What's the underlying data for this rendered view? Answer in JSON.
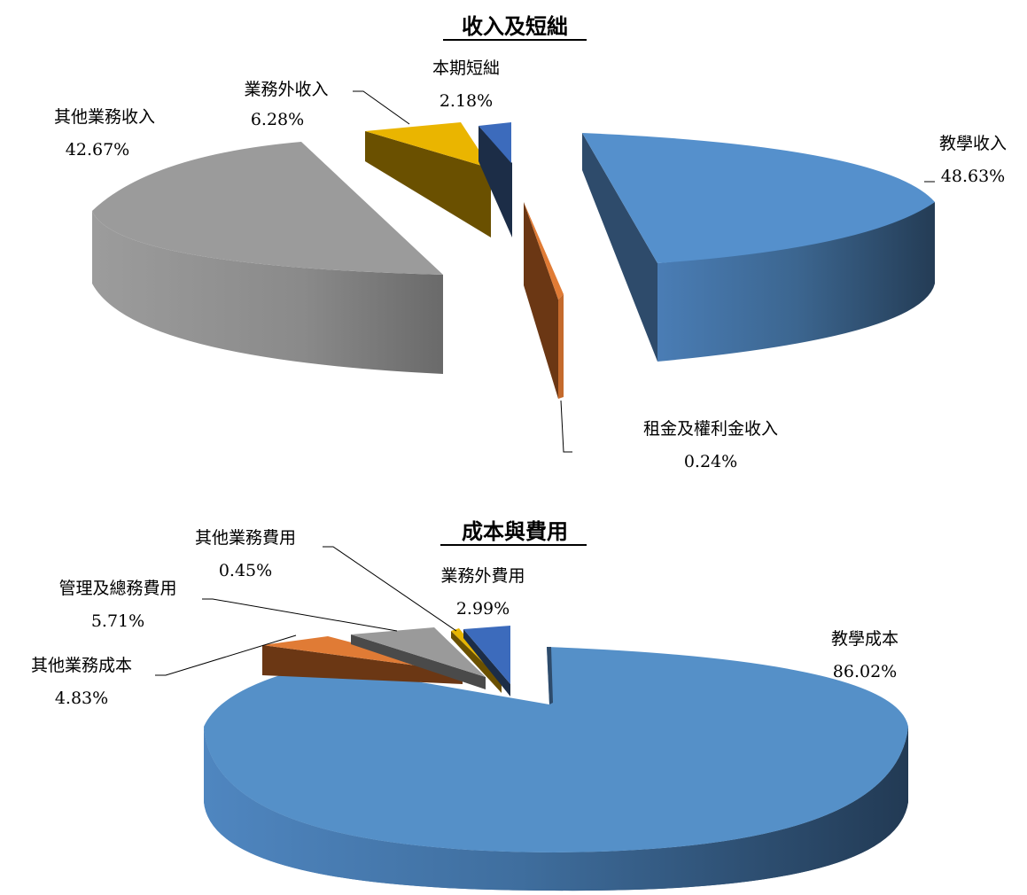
{
  "chart_data": [
    {
      "type": "pie",
      "title": "收入及短絀",
      "slices": [
        {
          "name": "教學收入",
          "value": 48.63,
          "label": "48.63%",
          "color": "#4f81bd"
        },
        {
          "name": "租金及權利金收入",
          "value": 0.24,
          "label": "0.24%",
          "color": "#d67a33"
        },
        {
          "name": "其他業務收入",
          "value": 42.67,
          "label": "42.67%",
          "color": "#9a9a9a"
        },
        {
          "name": "業務外收入",
          "value": 6.28,
          "label": "6.28%",
          "color": "#e6b400"
        },
        {
          "name": "本期短絀",
          "value": 2.18,
          "label": "2.18%",
          "color": "#3d69b8"
        }
      ]
    },
    {
      "type": "pie",
      "title": "成本與費用",
      "slices": [
        {
          "name": "教學成本",
          "value": 86.02,
          "label": "86.02%",
          "color": "#4f81bd"
        },
        {
          "name": "其他業務成本",
          "value": 4.83,
          "label": "4.83%",
          "color": "#d67a33"
        },
        {
          "name": "管理及總務費用",
          "value": 5.71,
          "label": "5.71%",
          "color": "#9a9a9a"
        },
        {
          "name": "其他業務費用",
          "value": 0.45,
          "label": "0.45%",
          "color": "#e6b400"
        },
        {
          "name": "業務外費用",
          "value": 2.99,
          "label": "2.99%",
          "color": "#3d69b8"
        }
      ]
    }
  ]
}
